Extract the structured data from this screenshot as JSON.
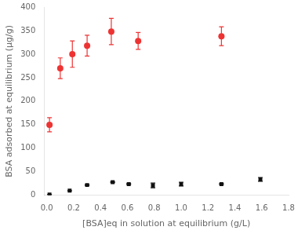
{
  "chart_data": {
    "type": "scatter",
    "x_label": "[BSA]eq in solution at equilibrium (g/L)",
    "y_label": "BSA adsorbed at equilibrium (μg/g)",
    "series": [
      {
        "color": "#EE3333",
        "marker": "circle",
        "x": [
          0.02,
          0.1,
          0.19,
          0.3,
          0.48,
          0.68,
          1.3
        ],
        "values": [
          150,
          270,
          300,
          318,
          348,
          328,
          338
        ],
        "errors": [
          15,
          22,
          28,
          22,
          28,
          18,
          20
        ]
      },
      {
        "color": "#111111",
        "marker": "square",
        "x": [
          0.02,
          0.17,
          0.3,
          0.49,
          0.61,
          0.79,
          1.0,
          1.3,
          1.59
        ],
        "values": [
          2,
          10,
          22,
          28,
          24,
          21,
          24,
          24,
          34
        ],
        "errors": [
          0,
          0,
          1,
          1,
          1,
          5,
          4,
          1,
          4
        ]
      }
    ],
    "xlim": [
      -0.02,
      1.8
    ],
    "ylim": [
      0,
      400
    ],
    "xticks": [
      {
        "value": 0.0,
        "label": "0.0"
      },
      0.2,
      0.4,
      0.6,
      0.8,
      {
        "value": 1.0,
        "label": "1.0"
      },
      1.2,
      1.4,
      1.6,
      1.8
    ],
    "yticks": [
      0,
      50,
      100,
      150,
      200,
      250,
      300,
      350,
      400
    ],
    "grid": false
  }
}
